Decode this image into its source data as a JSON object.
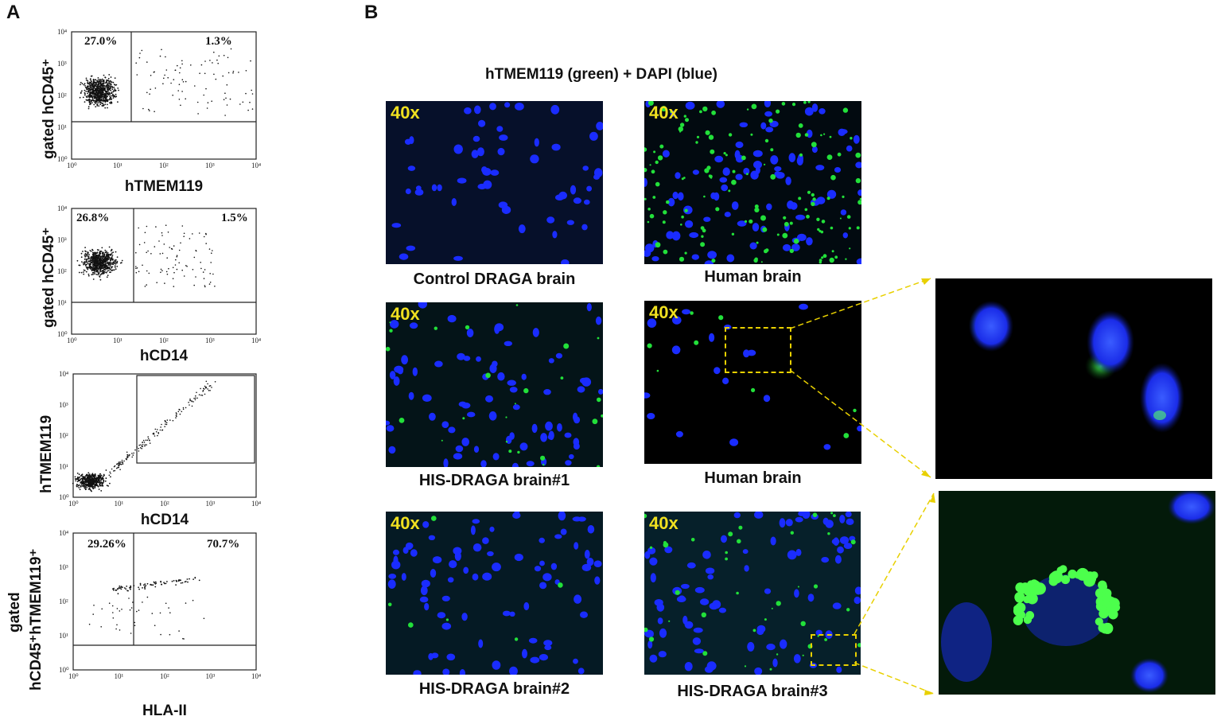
{
  "panels": {
    "a": "A",
    "b": "B"
  },
  "flow": {
    "tick_labels": [
      "10⁰",
      "10¹",
      "10²",
      "10³",
      "10⁴"
    ],
    "plots": [
      {
        "ylabel": "gated hCD45⁺",
        "xlabel": "hTMEM119",
        "left_pct": "27.0%",
        "right_pct": "1.3%"
      },
      {
        "ylabel": "gated hCD45⁺",
        "xlabel": "hCD14",
        "left_pct": "26.8%",
        "right_pct": "1.5%"
      },
      {
        "ylabel": "hTMEM119",
        "xlabel": "hCD14"
      },
      {
        "ylabel_line1": "gated",
        "ylabel_line2": "hCD45⁺hTMEM119⁺",
        "xlabel": "HLA-II",
        "left_pct": "29.26%",
        "right_pct": "70.7%"
      }
    ]
  },
  "micrographs": {
    "title": "hTMEM119 (green) + DAPI (blue)",
    "magnification": "40x",
    "captions": [
      "Control DRAGA brain",
      "Human brain",
      "HIS-DRAGA brain#1",
      "Human brain",
      "HIS-DRAGA brain#2",
      "HIS-DRAGA brain#3"
    ],
    "colors": {
      "nucleus": "#1a2cff",
      "tmem119": "#22e03a",
      "inset_box": "#e8d000"
    }
  }
}
